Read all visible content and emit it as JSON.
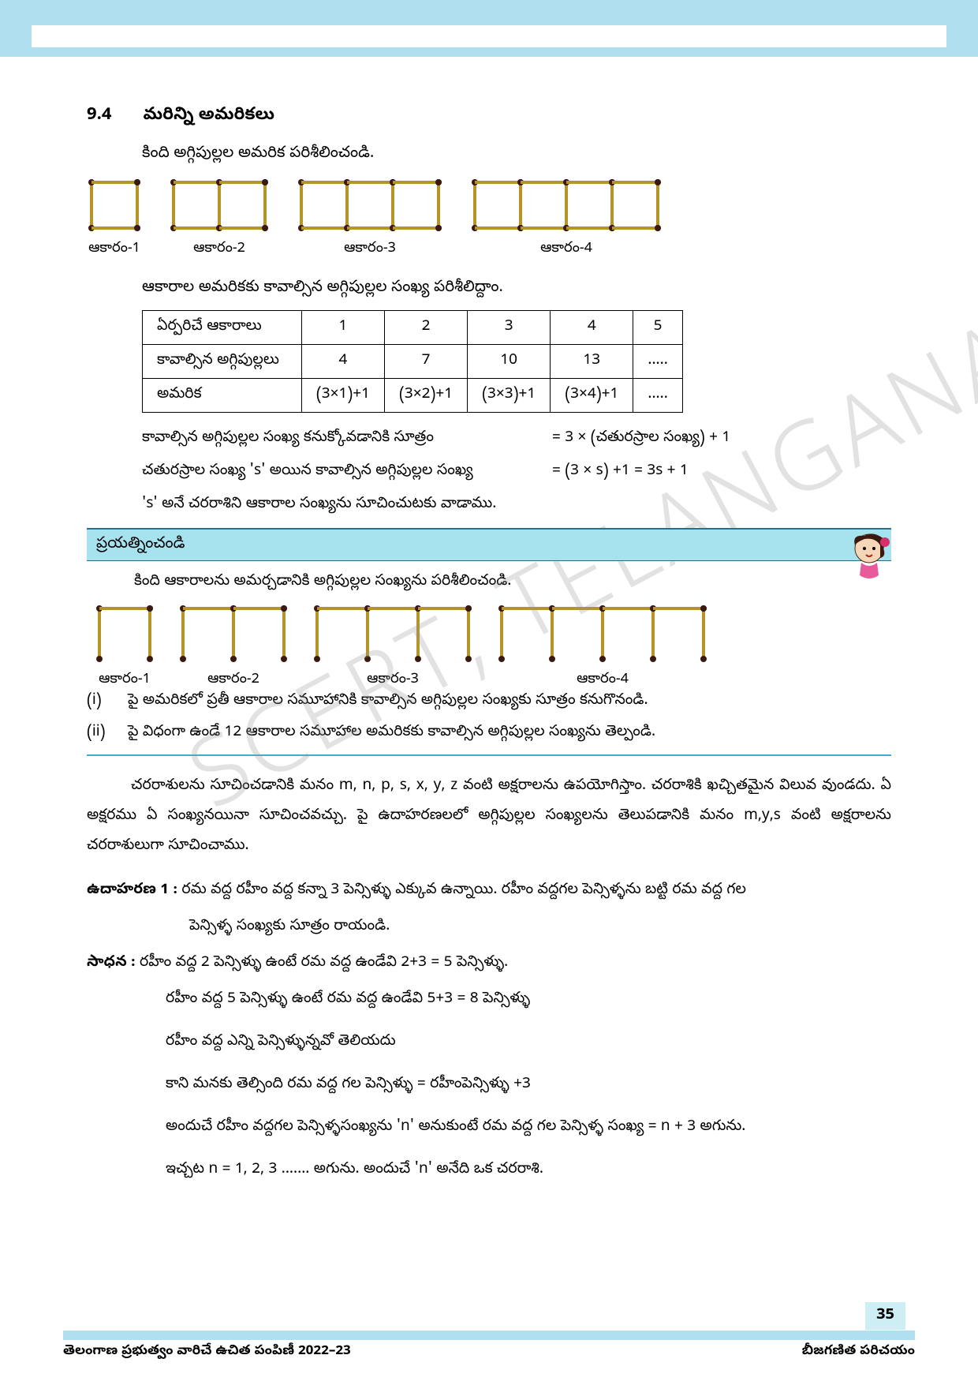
{
  "colors": {
    "band": "#b0dff0",
    "textbook_divider": "#3bb0c7",
    "match_stick": "#b59428",
    "match_head": "#3a1a10",
    "watermark": "rgba(150,150,150,0.28)"
  },
  "section": {
    "number": "9.4",
    "title": "మరిన్ని అమరికలు"
  },
  "intro": "కింది అగ్గిపుల్లల అమరిక పరిశీలించండి.",
  "shape_labels": [
    "ఆకారం-1",
    "ఆకారం-2",
    "ఆకారం-3",
    "ఆకారం-4"
  ],
  "shape_sizes": [
    1,
    2,
    3,
    4
  ],
  "subhead": "ఆకారాల అమరికకు కావాల్సిన అగ్గిపుల్లల సంఖ్య పరిశీలిద్దాం.",
  "table": {
    "rows": [
      {
        "label": "ఏర్పరిచే ఆకారాలు",
        "cells": [
          "1",
          "2",
          "3",
          "4",
          "5"
        ]
      },
      {
        "label": "కావాల్సిన అగ్గిపుల్లలు",
        "cells": [
          "4",
          "7",
          "10",
          "13",
          "....."
        ]
      },
      {
        "label": "అమరిక",
        "cells": [
          "(3×1)+1",
          "(3×2)+1",
          "(3×3)+1",
          "(3×4)+1",
          "....."
        ]
      }
    ]
  },
  "formulas": [
    {
      "left": "కావాల్సిన అగ్గిపుల్లల సంఖ్య కనుక్కోవడానికి సూత్రం",
      "right": "=  3 × (చతురస్రాల సంఖ్య) + 1"
    },
    {
      "left": "చతురస్రాల సంఖ్య 's' అయిన కావాల్సిన అగ్గిపుల్లల సంఖ్య",
      "right": "=  (3 × s) +1 = 3s + 1"
    }
  ],
  "variable_line": "'s' అనే చరరాశిని ఆకారాల సంఖ్యను సూచించుటకు వాడాము.",
  "try_heading": "ప్రయత్నించండి",
  "try_intro": "కింది ఆకారాలను అమర్చడానికి అగ్గిపుల్లల సంఖ్యను పరిశీలించండి.",
  "try_shape_labels": [
    "ఆకారం-1",
    "ఆకారం-2",
    "ఆకారం-3",
    "ఆకారం-4"
  ],
  "try_shape_sizes": [
    1,
    2,
    3,
    4
  ],
  "questions": [
    {
      "num": "(i)",
      "text": "పై అమరికలో ప్రతీ ఆకారాల సమూహానికి కావాల్సిన అగ్గిపుల్లల సంఖ్యకు సూత్రం కనుగొనండి."
    },
    {
      "num": "(ii)",
      "text": "పై విధంగా ఉండే 12 ఆకారాల సమూహాల అమరికకు కావాల్సిన అగ్గిపుల్లల సంఖ్యను తెల్పండి."
    }
  ],
  "paragraph": "చరరాశులను సూచించడానికి మనం m, n, p, s, x, y, z వంటి అక్షరాలను ఉపయోగిస్తాం. చరరాశికి ఖచ్చితమైన విలువ వుండదు. ఏ అక్షరము ఏ సంఖ్యనయినా సూచించవచ్చు.  పై ఉదాహరణలలో అగ్గిపుల్లల సంఖ్యలను తెలుపడానికి మనం m,y,s వంటి అక్షరాలను చరరాశులుగా సూచించాము.",
  "example": {
    "label": "ఉదాహరణ 1 :",
    "text": "రమ వద్ద రహీం వద్ద కన్నా 3 పెన్సిళ్ళు ఎక్కువ ఉన్నాయి. రహీం వద్దగల పెన్సిళ్ళను బట్టి రమ వద్ద గల",
    "text2": "పెన్సిళ్ళ సంఖ్యకు సూత్రం రాయండి."
  },
  "solution": {
    "label": "సాధన :",
    "lines": [
      "రహీం వద్ద 2 పెన్సిళ్ళు ఉంటే రమ వద్ద ఉండేవి 2+3 = 5 పెన్సిళ్ళు.",
      "రహీం వద్ద 5 పెన్సిళ్ళు ఉంటే రమ వద్ద ఉండేవి 5+3 = 8 పెన్సిళ్ళు",
      "రహీం వద్ద ఎన్ని పెన్సిళ్ళున్నవో తెలియదు",
      "కాని మనకు తెల్సింది రమ వద్ద గల పెన్సిళ్ళు  = రహీంపెన్సిళ్ళు +3",
      "అందుచే రహీం వద్దగల పెన్సిళ్ళసంఖ్యను 'n' అనుకుంటే రమ వద్ద గల పెన్సిళ్ళ సంఖ్య = n + 3 అగును.",
      "ఇచ్చట n = 1, 2, 3 ....... అగును. అందుచే 'n' అనేది ఒక చరరాశి."
    ]
  },
  "footer": {
    "page": "35",
    "left": "తెలంగాణ ప్రభుత్వం వారిచే ఉచిత పంపిణీ 2022–23",
    "right": "బీజగణిత పరిచయం"
  },
  "watermark": "SCERT, TELANGANA"
}
